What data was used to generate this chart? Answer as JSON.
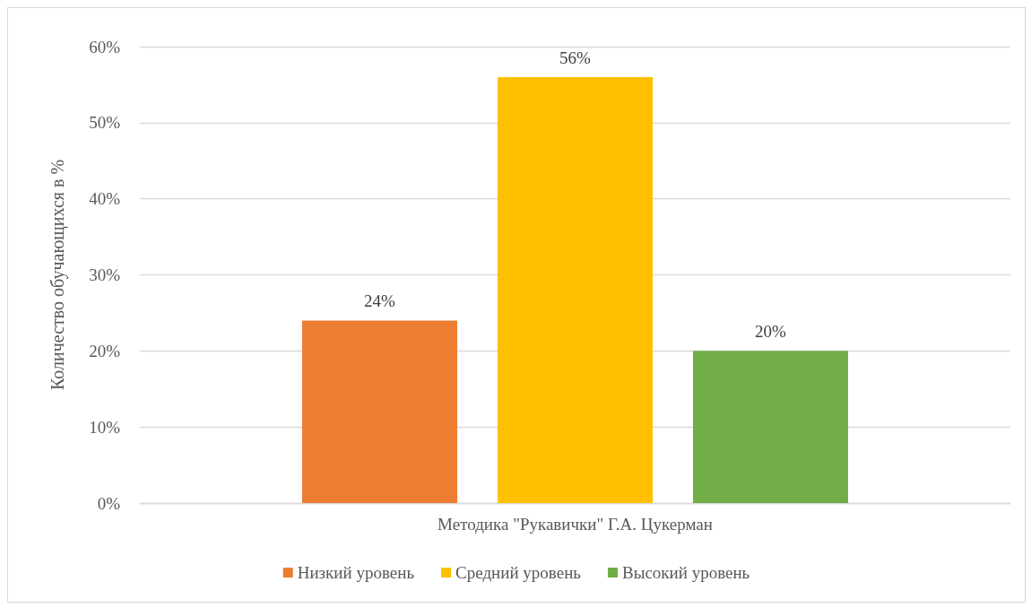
{
  "chart_data": {
    "type": "bar",
    "categories": [
      "Методика \"Рукавички\" Г.А. Цукерман"
    ],
    "ylabel": "Количество обучающихся в %",
    "ylim": [
      0,
      60
    ],
    "yticks": [
      {
        "value": 0,
        "label": "0%"
      },
      {
        "value": 10,
        "label": "10%"
      },
      {
        "value": 20,
        "label": "20%"
      },
      {
        "value": 30,
        "label": "30%"
      },
      {
        "value": 40,
        "label": "40%"
      },
      {
        "value": 50,
        "label": "50%"
      },
      {
        "value": 60,
        "label": "60%"
      }
    ],
    "grid": "y",
    "legend": "bottom",
    "series": [
      {
        "name": "Низкий уровень",
        "color": "#ed7d31",
        "values": [
          24
        ],
        "value_labels": [
          "24%"
        ]
      },
      {
        "name": "Средний уровень",
        "color": "#ffc000",
        "values": [
          56
        ],
        "value_labels": [
          "56%"
        ]
      },
      {
        "name": "Высокий уровень",
        "color": "#70ad47",
        "values": [
          20
        ],
        "value_labels": [
          "20%"
        ]
      }
    ]
  }
}
